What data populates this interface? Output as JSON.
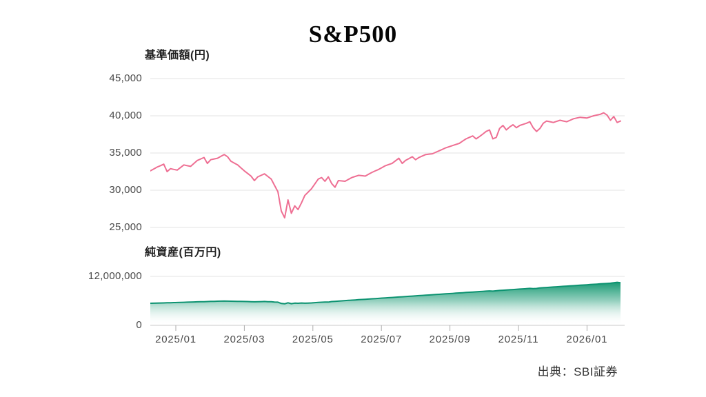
{
  "page": {
    "title": "S&P500",
    "source": "出典：SBI証券",
    "background": "#ffffff"
  },
  "colors": {
    "price_line": "#ee6f93",
    "assets_line": "#0d9371",
    "assets_fill_top": "#10966f",
    "gridline": "#e3e3e3",
    "baseline": "#c9c9c9",
    "tick": "#ababab",
    "label_text": "#4a4a4a"
  },
  "chart_data": [
    {
      "type": "line",
      "title": "基準価額(円)",
      "series_name": "基準価額",
      "color": "#ee6f93",
      "ylim": [
        25000,
        45000
      ],
      "y_ticks": [
        "45,000",
        "40,000",
        "35,000",
        "30,000",
        "25,000"
      ],
      "y_tick_values": [
        45000,
        40000,
        35000,
        30000,
        25000
      ],
      "x_range": [
        "2024/12",
        "2026/02"
      ],
      "grid": true,
      "legend": "none",
      "values": [
        32600,
        32850,
        33100,
        33300,
        33500,
        32500,
        32900,
        32800,
        32700,
        33050,
        33400,
        33300,
        33200,
        33600,
        34000,
        34200,
        34400,
        33600,
        34100,
        34200,
        34300,
        34550,
        34800,
        34500,
        33900,
        33650,
        33400,
        33000,
        32600,
        32250,
        31900,
        31300,
        31800,
        32000,
        32200,
        31850,
        31500,
        30650,
        29800,
        27200,
        26300,
        28700,
        26900,
        27900,
        27400,
        28300,
        29300,
        29750,
        30200,
        30850,
        31500,
        31700,
        31200,
        31800,
        30900,
        30400,
        31300,
        31250,
        31200,
        31450,
        31700,
        31850,
        32000,
        31950,
        31900,
        32150,
        32400,
        32600,
        32800,
        33050,
        33300,
        33450,
        33600,
        33950,
        34300,
        33600,
        34000,
        34250,
        34500,
        34100,
        34400,
        34600,
        34800,
        34850,
        34900,
        35100,
        35300,
        35500,
        35700,
        35850,
        36000,
        36150,
        36300,
        36600,
        36900,
        37100,
        37300,
        36900,
        37200,
        37550,
        37900,
        38100,
        36900,
        37100,
        38300,
        38700,
        38100,
        38500,
        38800,
        38400,
        38700,
        38850,
        39000,
        39200,
        38400,
        37900,
        38300,
        39000,
        39300,
        39200,
        39100,
        39250,
        39400,
        39300,
        39200,
        39400,
        39600,
        39700,
        39800,
        39750,
        39700,
        39850,
        40000,
        40100,
        40200,
        40400,
        40100,
        39400,
        39900,
        39100,
        39300
      ]
    },
    {
      "type": "area",
      "title": "純資産(百万円)",
      "series_name": "純資産",
      "color": "#0d9371",
      "ylim": [
        0,
        12000000
      ],
      "y_ticks": [
        "12,000,000",
        "0"
      ],
      "y_tick_values": [
        12000000,
        0
      ],
      "x_range": [
        "2024/12",
        "2026/02"
      ],
      "x_tick_labels": [
        "2025/01",
        "2025/03",
        "2025/05",
        "2025/07",
        "2025/09",
        "2025/11",
        "2026/01"
      ],
      "grid": true,
      "legend": "none",
      "values": [
        5400000,
        5430000,
        5450000,
        5480000,
        5500000,
        5520000,
        5550000,
        5570000,
        5600000,
        5630000,
        5650000,
        5680000,
        5700000,
        5730000,
        5760000,
        5780000,
        5800000,
        5830000,
        5860000,
        5890000,
        5910000,
        5930000,
        5950000,
        5930000,
        5920000,
        5900000,
        5880000,
        5870000,
        5850000,
        5830000,
        5800000,
        5760000,
        5800000,
        5820000,
        5840000,
        5800000,
        5780000,
        5720000,
        5680000,
        5350000,
        5280000,
        5520000,
        5300000,
        5450000,
        5400000,
        5480000,
        5420000,
        5460000,
        5500000,
        5560000,
        5610000,
        5670000,
        5720000,
        5700000,
        5830000,
        5890000,
        5940000,
        6000000,
        6060000,
        6110000,
        6170000,
        6220000,
        6280000,
        6330000,
        6390000,
        6440000,
        6500000,
        6560000,
        6610000,
        6670000,
        6720000,
        6780000,
        6830000,
        6890000,
        6940000,
        7000000,
        7060000,
        7110000,
        7170000,
        7220000,
        7280000,
        7330000,
        7390000,
        7440000,
        7500000,
        7560000,
        7610000,
        7670000,
        7720000,
        7780000,
        7830000,
        7890000,
        7940000,
        8000000,
        8060000,
        8110000,
        8170000,
        8220000,
        8280000,
        8330000,
        8390000,
        8440000,
        8380000,
        8460000,
        8560000,
        8610000,
        8670000,
        8720000,
        8780000,
        8830000,
        8890000,
        8940000,
        9000000,
        9060000,
        9000000,
        9050000,
        9170000,
        9220000,
        9280000,
        9330000,
        9390000,
        9440000,
        9500000,
        9560000,
        9610000,
        9670000,
        9720000,
        9780000,
        9830000,
        9890000,
        9940000,
        10000000,
        10060000,
        10110000,
        10170000,
        10220000,
        10280000,
        10330000,
        10450000,
        10550000,
        10420000
      ]
    }
  ]
}
